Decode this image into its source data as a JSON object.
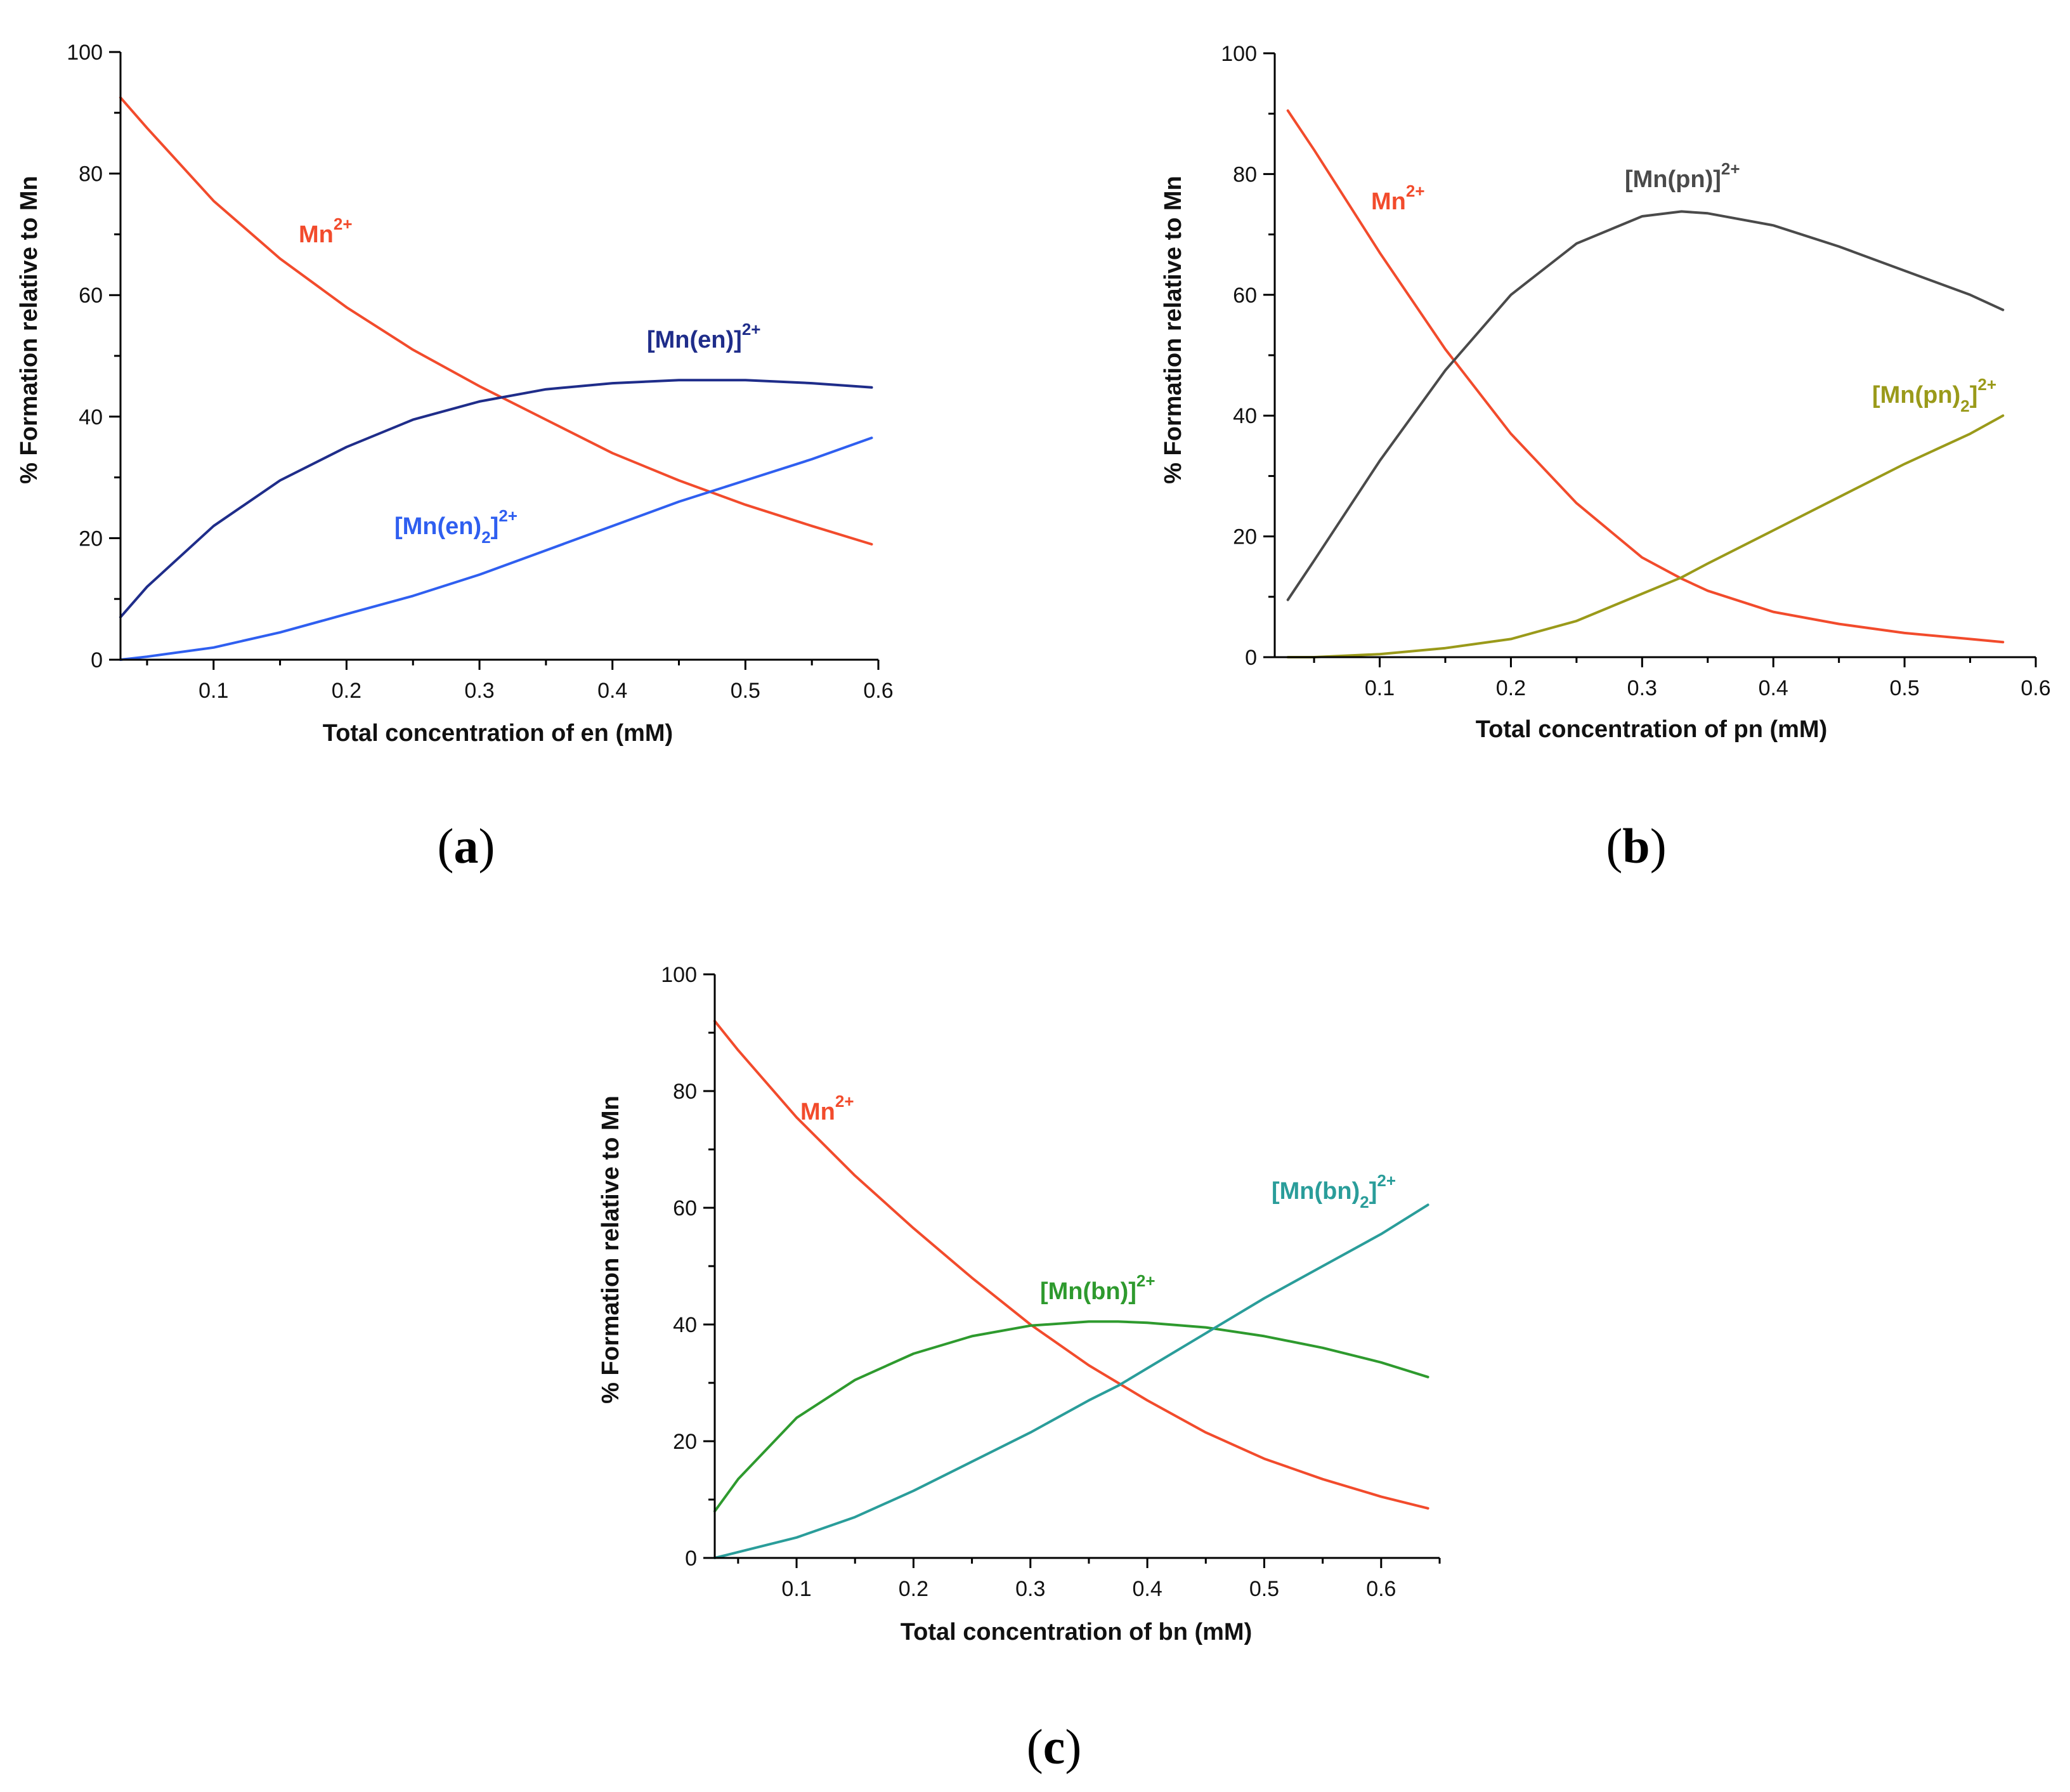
{
  "figure": {
    "panels": [
      {
        "caption_open": "(",
        "caption_letter": "a",
        "caption_close": ")"
      },
      {
        "caption_open": "(",
        "caption_letter": "b",
        "caption_close": ")"
      },
      {
        "caption_open": "(",
        "caption_letter": "c",
        "caption_close": ")"
      }
    ]
  },
  "chart_data": [
    {
      "type": "line",
      "panel": "a",
      "xlabel": "Total concentration of en (mM)",
      "ylabel": "% Formation  relative to Mn",
      "xlim": [
        0.03,
        0.6
      ],
      "ylim": [
        0,
        100
      ],
      "xticks": [
        0.1,
        0.2,
        0.3,
        0.4,
        0.5,
        0.6
      ],
      "xtick_labels": [
        "0.1",
        "0.2",
        "0.3",
        "0.4",
        "0.5",
        "0.6"
      ],
      "yticks": [
        0,
        20,
        40,
        60,
        80,
        100
      ],
      "ytick_labels": [
        "0",
        "20",
        "40",
        "60",
        "80",
        "100"
      ],
      "x": [
        0.03,
        0.05,
        0.1,
        0.15,
        0.2,
        0.25,
        0.3,
        0.35,
        0.4,
        0.45,
        0.5,
        0.55,
        0.595
      ],
      "series": [
        {
          "name": "Mn2+",
          "label_main": "Mn",
          "label_sup": "2+",
          "label_sub": "",
          "label_tail": "",
          "color": "#f24b2c",
          "values": [
            92.5,
            87.5,
            75.5,
            66.0,
            58.0,
            51.0,
            45.0,
            39.5,
            34.0,
            29.5,
            25.5,
            22.0,
            19.0
          ]
        },
        {
          "name": "[Mn(en)]2+",
          "label_main": "[Mn(en)]",
          "label_sup": "2+",
          "label_sub": "",
          "label_tail": "",
          "color": "#1f2d8a",
          "values": [
            7.0,
            12.0,
            22.0,
            29.5,
            35.0,
            39.5,
            42.5,
            44.5,
            45.5,
            46.0,
            46.0,
            45.5,
            44.8
          ]
        },
        {
          "name": "[Mn(en)2]2+",
          "label_main": "[Mn(en)",
          "label_sub": "2",
          "label_tail": "]",
          "label_sup": "2+",
          "color": "#2f5ff0",
          "values": [
            0.0,
            0.5,
            2.0,
            4.5,
            7.5,
            10.5,
            14.0,
            18.0,
            22.0,
            26.0,
            29.5,
            33.0,
            36.5
          ]
        }
      ]
    },
    {
      "type": "line",
      "panel": "b",
      "xlabel": "Total concentration of pn (mM)",
      "ylabel": "% Formation  relative to Mn",
      "xlim": [
        0.02,
        0.6
      ],
      "ylim": [
        0,
        100
      ],
      "xticks": [
        0.1,
        0.2,
        0.3,
        0.4,
        0.5,
        0.6
      ],
      "xtick_labels": [
        "0.1",
        "0.2",
        "0.3",
        "0.4",
        "0.5",
        "0.6"
      ],
      "yticks": [
        0,
        20,
        40,
        60,
        80,
        100
      ],
      "ytick_labels": [
        "0",
        "20",
        "40",
        "60",
        "80",
        "100"
      ],
      "x": [
        0.03,
        0.05,
        0.1,
        0.15,
        0.2,
        0.25,
        0.3,
        0.33,
        0.35,
        0.4,
        0.45,
        0.5,
        0.55,
        0.575
      ],
      "series": [
        {
          "name": "Mn2+",
          "label_main": "Mn",
          "label_sup": "2+",
          "label_sub": "",
          "label_tail": "",
          "color": "#f24b2c",
          "values": [
            90.5,
            84.0,
            67.0,
            51.0,
            37.0,
            25.5,
            16.5,
            13.0,
            11.0,
            7.5,
            5.5,
            4.0,
            3.0,
            2.5
          ]
        },
        {
          "name": "[Mn(pn)]2+",
          "label_main": "[Mn(pn)]",
          "label_sup": "2+",
          "label_sub": "",
          "label_tail": "",
          "color": "#4a4a4a",
          "values": [
            9.5,
            16.0,
            32.5,
            47.5,
            60.0,
            68.5,
            73.0,
            73.8,
            73.5,
            71.5,
            68.0,
            64.0,
            60.0,
            57.5
          ]
        },
        {
          "name": "[Mn(pn)2]2+",
          "label_main": "[Mn(pn)",
          "label_sub": "2",
          "label_tail": "]",
          "label_sup": "2+",
          "color": "#9a9a1a",
          "values": [
            0.0,
            0.0,
            0.5,
            1.5,
            3.0,
            6.0,
            10.5,
            13.2,
            15.5,
            21.0,
            26.5,
            32.0,
            37.0,
            40.0
          ]
        }
      ]
    },
    {
      "type": "line",
      "panel": "c",
      "xlabel": "Total concentration of bn  (mM)",
      "ylabel": "% Formation  relative to Mn",
      "xlim": [
        0.03,
        0.65
      ],
      "ylim": [
        0,
        100
      ],
      "xticks": [
        0.1,
        0.2,
        0.3,
        0.4,
        0.5,
        0.6
      ],
      "xtick_labels": [
        "0.1",
        "0.2",
        "0.3",
        "0.4",
        "0.5",
        "0.6"
      ],
      "yticks": [
        0,
        20,
        40,
        60,
        80,
        100
      ],
      "ytick_labels": [
        "0",
        "20",
        "40",
        "60",
        "80",
        "100"
      ],
      "x": [
        0.03,
        0.05,
        0.1,
        0.15,
        0.2,
        0.25,
        0.3,
        0.35,
        0.375,
        0.4,
        0.45,
        0.5,
        0.55,
        0.6,
        0.64
      ],
      "series": [
        {
          "name": "Mn2+",
          "label_main": "Mn",
          "label_sup": "2+",
          "label_sub": "",
          "label_tail": "",
          "color": "#f24b2c",
          "values": [
            92.0,
            87.0,
            75.5,
            65.5,
            56.5,
            48.0,
            40.0,
            33.0,
            30.0,
            27.0,
            21.5,
            17.0,
            13.5,
            10.5,
            8.5
          ]
        },
        {
          "name": "[Mn(bn)]2+",
          "label_main": "[Mn(bn)]",
          "label_sup": "2+",
          "label_sub": "",
          "label_tail": "",
          "color": "#2e9a2e",
          "values": [
            8.0,
            13.5,
            24.0,
            30.5,
            35.0,
            38.0,
            39.8,
            40.5,
            40.5,
            40.3,
            39.5,
            38.0,
            36.0,
            33.5,
            31.0
          ]
        },
        {
          "name": "[Mn(bn)2]2+",
          "label_main": "[Mn(bn)",
          "label_sub": "2",
          "label_tail": "]",
          "label_sup": "2+",
          "color": "#2a9d9a",
          "values": [
            0.0,
            1.0,
            3.5,
            7.0,
            11.5,
            16.5,
            21.5,
            27.0,
            29.5,
            32.5,
            38.5,
            44.5,
            50.0,
            55.5,
            60.5
          ]
        }
      ]
    }
  ]
}
